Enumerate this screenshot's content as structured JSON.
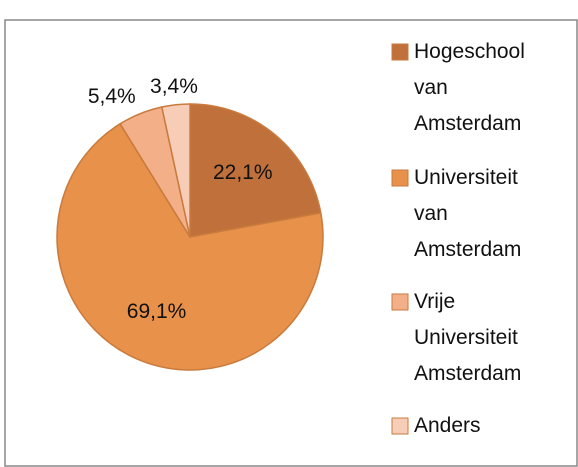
{
  "chart_data": {
    "type": "pie",
    "categories": [
      "Hogeschool van Amsterdam",
      "Universiteit van Amsterdam",
      "Vrije Universiteit Amsterdam",
      "Anders"
    ],
    "values": [
      22.1,
      69.1,
      5.4,
      3.4
    ],
    "value_labels": [
      "22,1%",
      "69,1%",
      "5,4%",
      "3,4%"
    ],
    "colors": [
      "#c0703a",
      "#e8914a",
      "#f3b088",
      "#f8cdb8"
    ],
    "legend": "right"
  }
}
